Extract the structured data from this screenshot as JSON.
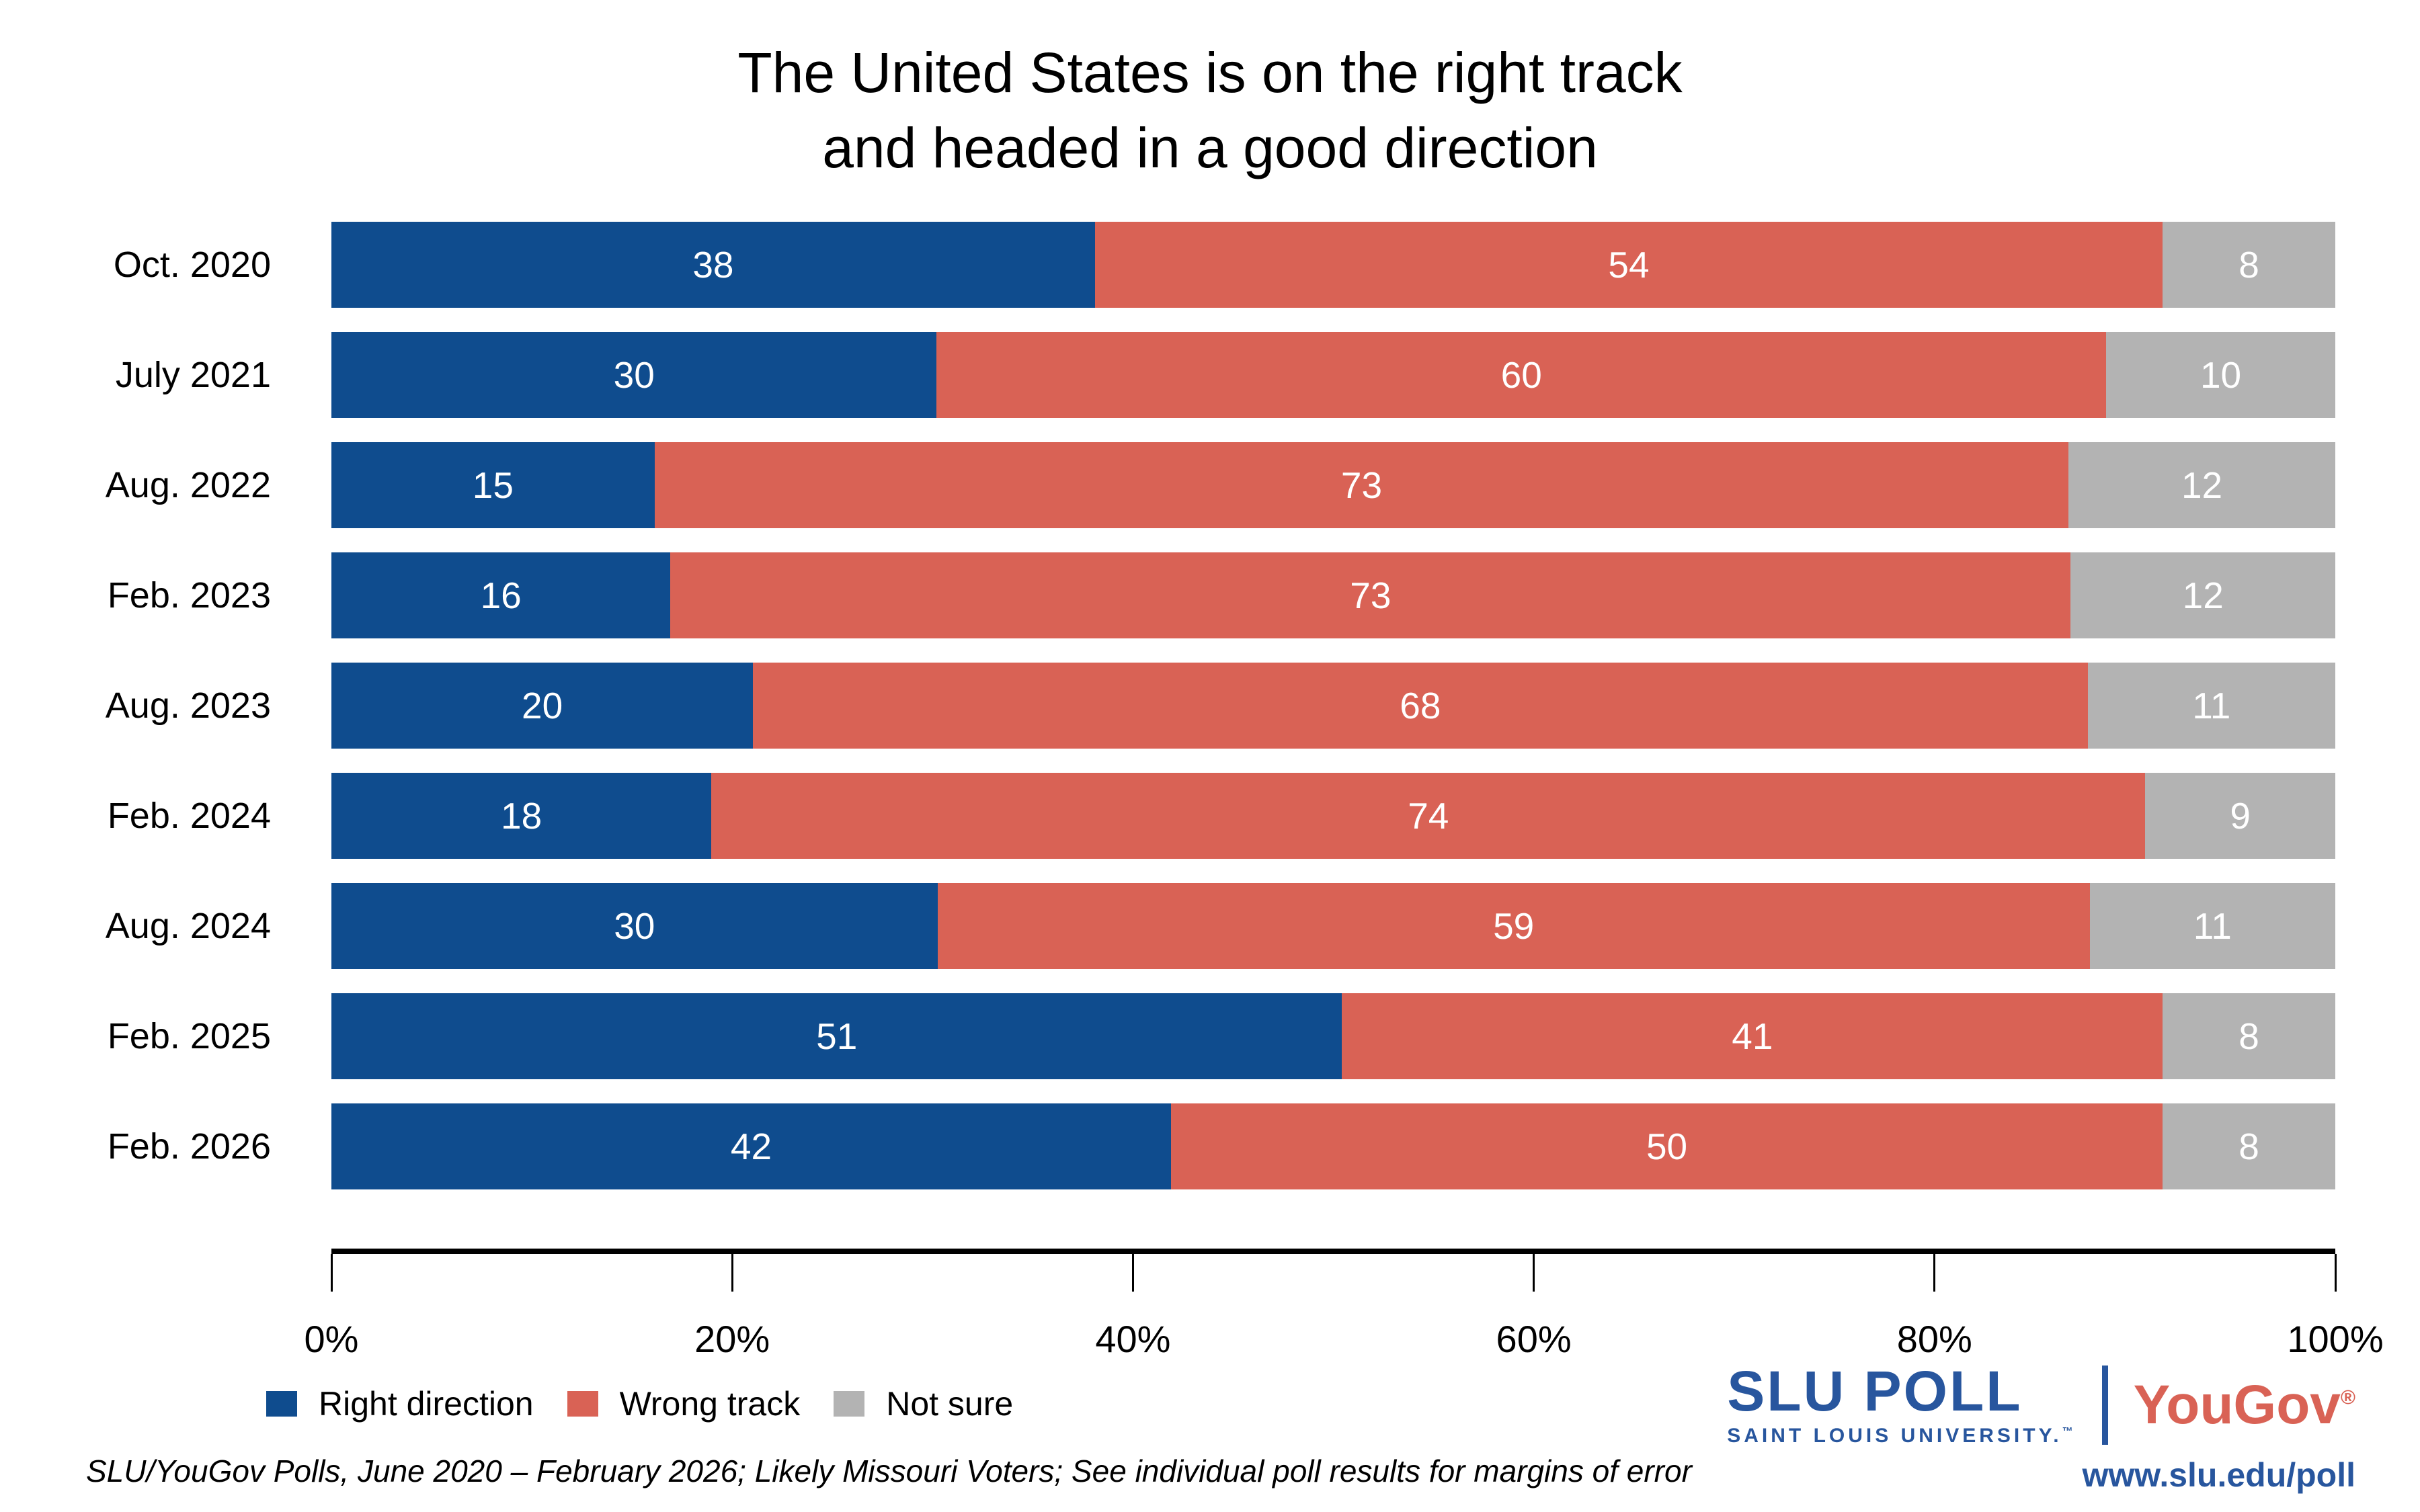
{
  "title": {
    "line1": "The United States is on the right track",
    "line2": "and headed in a good direction"
  },
  "chart_data": {
    "type": "bar",
    "orientation": "horizontal-stacked",
    "title": "The United States is on the right track and headed in a good direction",
    "categories": [
      "Oct. 2020",
      "July 2021",
      "Aug. 2022",
      "Feb. 2023",
      "Aug. 2023",
      "Feb. 2024",
      "Aug. 2024",
      "Feb. 2025",
      "Feb. 2026"
    ],
    "series": [
      {
        "name": "Right direction",
        "color": "#0f4c8e",
        "values": [
          38,
          30,
          15,
          16,
          20,
          18,
          30,
          51,
          42
        ]
      },
      {
        "name": "Wrong track",
        "color": "#d96255",
        "values": [
          54,
          60,
          73,
          73,
          68,
          74,
          59,
          41,
          50
        ]
      },
      {
        "name": "Not sure",
        "color": "#b3b3b3",
        "values": [
          8,
          10,
          12,
          12,
          11,
          9,
          11,
          8,
          8
        ]
      }
    ],
    "xlabel": "",
    "ylabel": "",
    "xlim": [
      0,
      100
    ],
    "x_ticks": [
      "0%",
      "20%",
      "40%",
      "60%",
      "80%",
      "100%"
    ],
    "x_tick_values": [
      0,
      20,
      40,
      60,
      80,
      100
    ],
    "grid": false,
    "legend_position": "bottom-left",
    "value_labels": "inside-white"
  },
  "footer": {
    "source_note": "SLU/YouGov Polls, June 2020 – February 2026; Likely Missouri Voters; See individual poll results for margins of error"
  },
  "branding": {
    "slu_strong": "SLU",
    "slu_light": "POLL",
    "slu_sub": "SAINT LOUIS UNIVERSITY.",
    "slu_tm": "™",
    "yougov": "YouGov",
    "yougov_reg": "®",
    "url": "www.slu.edu/poll"
  },
  "colors": {
    "bar_blue": "#0f4c8e",
    "bar_red": "#d96255",
    "bar_gray": "#b3b3b3",
    "axis": "#000000",
    "slu_blue": "#28569e",
    "yougov_red": "#d96255",
    "value_label": "#ffffff"
  }
}
